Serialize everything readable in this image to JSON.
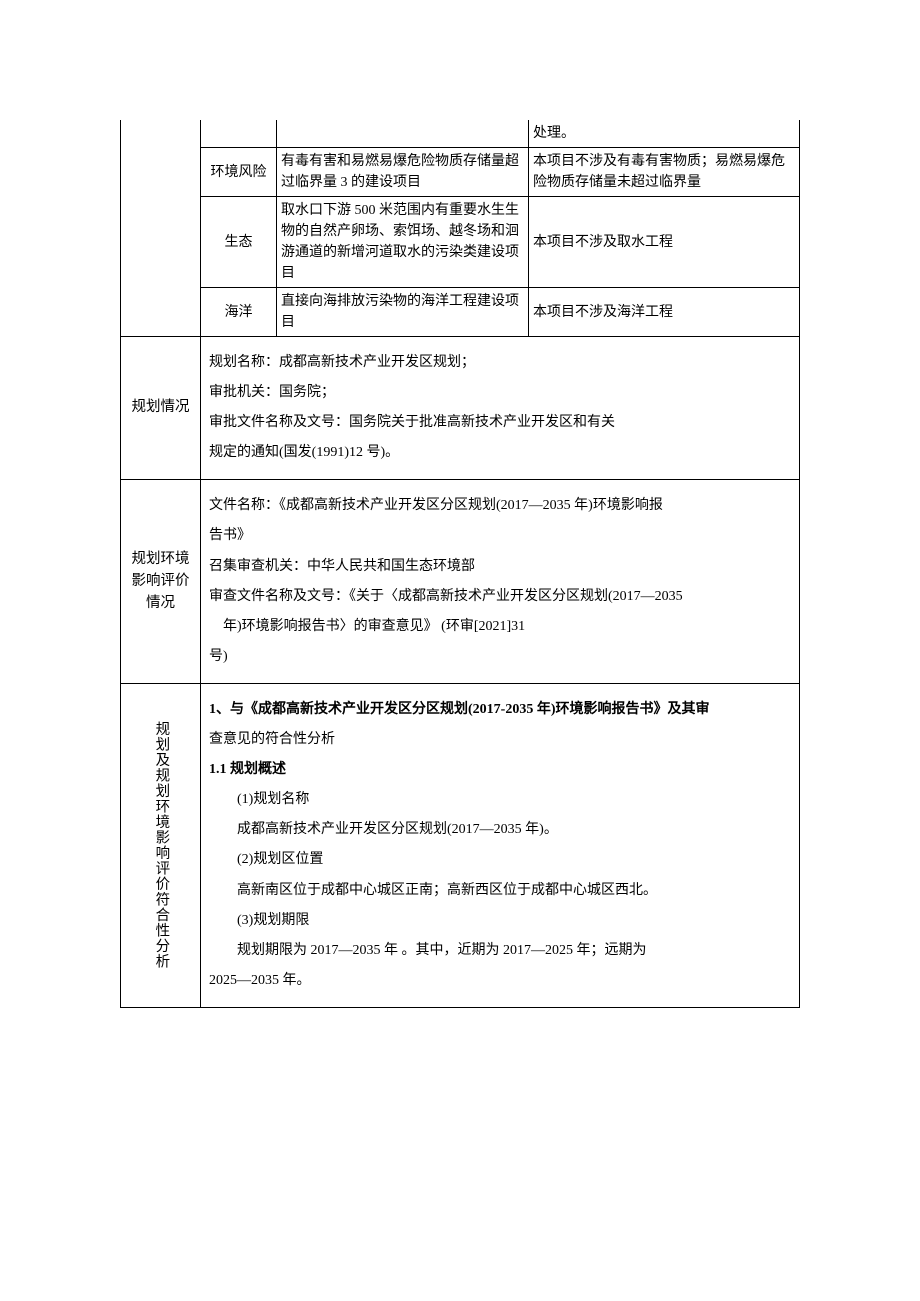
{
  "colors": {
    "background": "#ffffff",
    "text": "#000000",
    "border": "#000000"
  },
  "fonts": {
    "body_family": "SimSun, 宋体, Songti SC, serif",
    "body_size_pt": 10.5,
    "line_height": 2.15
  },
  "rows": {
    "r0": {
      "category": "",
      "criterion": "",
      "result": "处理。"
    },
    "r1": {
      "category": "环境风险",
      "criterion": "有毒有害和易燃易爆危险物质存储量超过临界量 3 的建设项目",
      "result": "本项目不涉及有毒有害物质；易燃易爆危险物质存储量未超过临界量"
    },
    "r2": {
      "category": "生态",
      "criterion": "取水口下游 500 米范围内有重要水生生物的自然产卵场、索饵场、越冬场和洄游通道的新增河道取水的污染类建设项目",
      "result": "本项目不涉及取水工程"
    },
    "r3": {
      "category": "海洋",
      "criterion": "直接向海排放污染物的海洋工程建设项目",
      "result": "本项目不涉及海洋工程"
    }
  },
  "section_planning": {
    "label": "规划情况",
    "line1": "规划名称：成都高新技术产业开发区规划；",
    "line2": "审批机关：国务院；",
    "line3": "审批文件名称及文号：国务院关于批准高新技术产业开发区和有关",
    "line4": "规定的通知(国发(1991)12 号)。"
  },
  "section_eia": {
    "label": "规划环境影响评价情况",
    "line1a": "文件名称：《成都高新技术产业开发区分区规划(2017—2035 年)环境影响报",
    "line1b": "告书》",
    "line2": "召集审查机关：中华人民共和国生态环境部",
    "line3a": "审查文件名称及文号：《关于〈成都高新技术产业开发区分区规划(2017—2035",
    "line3b": " 年)环境影响报告书〉的审查意见》 (环审[2021]31",
    "line3c": "号)"
  },
  "section_analysis": {
    "label": "规划及规划环境影响评价符合性分析",
    "line1a": "1、与《成都高新技术产业开发区分区规划(2017-2035 年)环境影响报告书》及其审",
    "line1b": "查意见的符合性分析",
    "h11": "1.1 规划概述",
    "p1": "(1)规划名称",
    "p1_body": "成都高新技术产业开发区分区规划(2017—2035 年)。",
    "p2": "(2)规划区位置",
    "p2_body": "高新南区位于成都中心城区正南；高新西区位于成都中心城区西北。",
    "p3": "(3)规划期限",
    "p3_body_a": "规划期限为 2017—2035 年 。其中，近期为 2017—2025 年；远期为",
    "p3_body_b": "2025—2035 年。"
  }
}
